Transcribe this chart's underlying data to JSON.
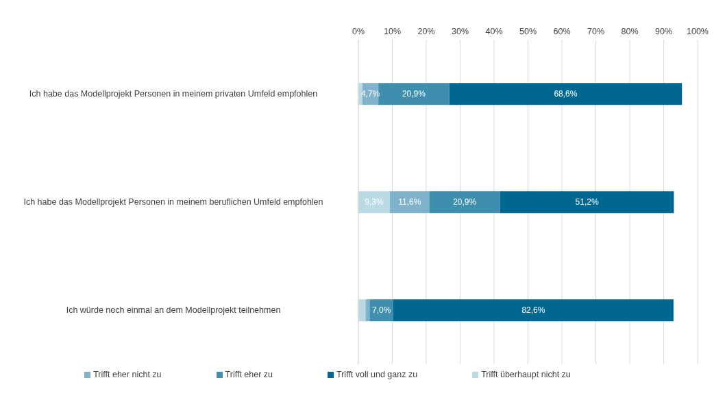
{
  "chart_data": {
    "type": "bar",
    "orientation": "horizontal",
    "stacked": true,
    "categories": [
      "Ich habe das Modellprojekt Personen in meinem privaten Umfeld empfohlen",
      "Ich habe das Modellprojekt Personen in meinem beruflichen Umfeld empfohlen",
      "Ich würde noch einmal an dem Modellprojekt teilnehmen"
    ],
    "series": [
      {
        "name": "Trifft überhaupt nicht zu",
        "color": "#b9d9e3",
        "values": [
          1.2,
          9.3,
          2.1
        ],
        "value_labels": [
          null,
          "9,3%",
          null
        ]
      },
      {
        "name": "Trifft eher nicht zu",
        "color": "#7fb3cc",
        "values": [
          4.7,
          11.6,
          1.2
        ],
        "value_labels": [
          "4,7%",
          "11,6%",
          null
        ]
      },
      {
        "name": "Trifft eher zu",
        "color": "#3d8fad",
        "values": [
          20.9,
          20.9,
          7.0
        ],
        "value_labels": [
          "20,9%",
          "20,9%",
          "7,0%"
        ]
      },
      {
        "name": "Trifft voll und ganz zu",
        "color": "#006890",
        "values": [
          68.6,
          51.2,
          82.6
        ],
        "value_labels": [
          "68,6%",
          "51,2%",
          "82,6%"
        ]
      }
    ],
    "xlim": [
      0,
      100
    ],
    "xticks": [
      {
        "value": 0,
        "label": "0%"
      },
      {
        "value": 10,
        "label": "10%"
      },
      {
        "value": 20,
        "label": "20%"
      },
      {
        "value": 30,
        "label": "30%"
      },
      {
        "value": 40,
        "label": "40%"
      },
      {
        "value": 50,
        "label": "50%"
      },
      {
        "value": 60,
        "label": "60%"
      },
      {
        "value": 70,
        "label": "70%"
      },
      {
        "value": 80,
        "label": "80%"
      },
      {
        "value": 90,
        "label": "90%"
      },
      {
        "value": 100,
        "label": "100%"
      }
    ],
    "grid": "x",
    "legend": "bottom"
  }
}
